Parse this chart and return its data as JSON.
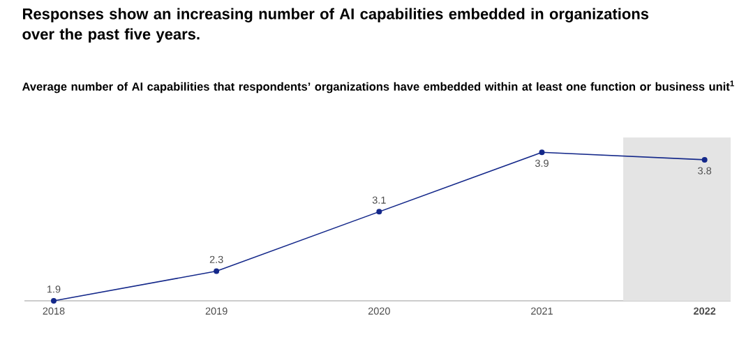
{
  "chart_data": {
    "type": "line",
    "title": "Responses show an increasing number of AI capabilities embedded in organizations over the past five years.",
    "subtitle": "Average number of AI capabilities that respondents’ organizations have embedded within at least one function or business unit$^{1}$",
    "x": [
      2018,
      2019,
      2020,
      2021,
      2022
    ],
    "values": [
      1.9,
      2.3,
      3.1,
      3.9,
      3.8
    ],
    "color": "#14288a",
    "marker": "circle",
    "data_labels": true,
    "xlim": [
      2017.82,
      2022.16
    ],
    "xticks": [
      2018,
      2019,
      2020,
      2021,
      {
        "value": 2022,
        "label": "**2022**"
      }
    ],
    "tick_labels": "x",
    "bands": [
      {
        "axis": "x",
        "from": 2021.5,
        "to": 2022.16,
        "color": "#e4e4e4"
      }
    ]
  }
}
